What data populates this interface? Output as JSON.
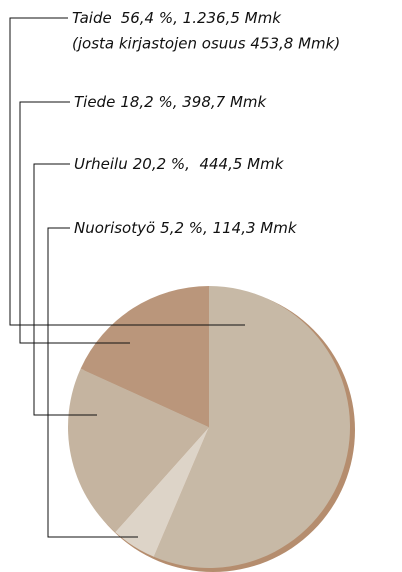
{
  "chart_data": {
    "type": "pie",
    "categories": [
      "Taide",
      "Tiede",
      "Urheilu",
      "Nuorisotyö"
    ],
    "values": [
      56.4,
      18.2,
      20.2,
      5.2
    ],
    "value_labels": [
      "56,4 %, 1.236,5 Mmk",
      "18,2 %, 398,7 Mmk",
      "20,2 %,  444,5 Mmk",
      "5,2 %, 114,3 Mmk"
    ],
    "note": "(josta kirjastojen osuus 453,8 Mmk)",
    "colors": [
      "#c7b9a6",
      "#ba967b",
      "#c5b4a0",
      "#ddd4c8"
    ],
    "slice_order": [
      0,
      3,
      2,
      1
    ]
  }
}
